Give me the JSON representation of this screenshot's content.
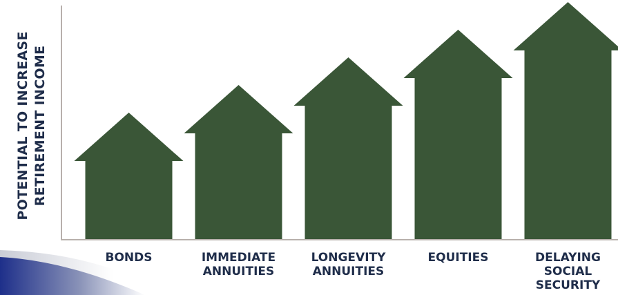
{
  "chart_data": {
    "type": "bar",
    "title": "",
    "xlabel": "",
    "ylabel_lines": [
      "POTENTIAL TO INCREASE",
      "RETIREMENT INCOME"
    ],
    "categories": [
      [
        "BONDS"
      ],
      [
        "IMMEDIATE",
        "ANNUITIES"
      ],
      [
        "LONGEVITY",
        "ANNUITIES"
      ],
      [
        "EQUITIES"
      ],
      [
        "DELAYING",
        "SOCIAL",
        "SECURITY"
      ]
    ],
    "values": [
      1,
      2,
      3,
      4,
      5
    ],
    "ylim": [
      0,
      5
    ],
    "grid": false,
    "legend": "none",
    "colors": {
      "bar": "#3a5637",
      "axis": "#b8b0ac",
      "text": "#1f2d4a",
      "accent": "#1e2f8a"
    }
  }
}
